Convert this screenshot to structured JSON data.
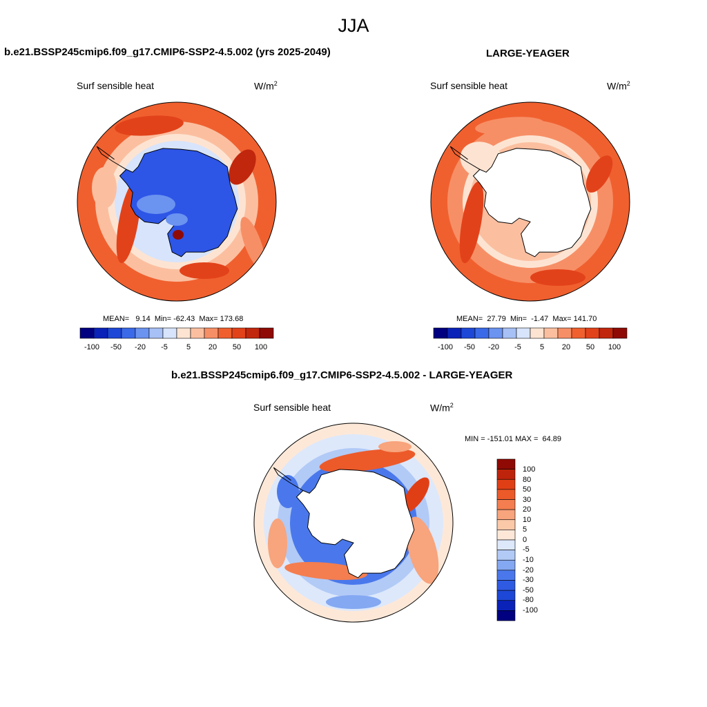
{
  "figure": {
    "title": "JJA",
    "panels": [
      {
        "id": "model",
        "title": "b.e21.BSSP245cmip6.f09_g17.CMIP6-SSP2-4.5.002 (yrs 2025-2049)",
        "variable": "Surf sensible heat",
        "units": "W/m",
        "units_sup": "2",
        "stats": "MEAN=   9.14  Min= -62.43  Max= 173.68",
        "colorbar_ticks": [
          "-100",
          "-50",
          "-20",
          "-5",
          "5",
          "20",
          "50",
          "100"
        ]
      },
      {
        "id": "obs",
        "title": "LARGE-YEAGER",
        "variable": "Surf sensible heat",
        "units": "W/m",
        "units_sup": "2",
        "stats": "MEAN=  27.79  Min=  -1.47  Max= 141.70",
        "colorbar_ticks": [
          "-100",
          "-50",
          "-20",
          "-5",
          "5",
          "20",
          "50",
          "100"
        ]
      },
      {
        "id": "diff",
        "title": "b.e21.BSSP245cmip6.f09_g17.CMIP6-SSP2-4.5.002 - LARGE-YEAGER",
        "variable": "Surf sensible heat",
        "units": "W/m",
        "units_sup": "2",
        "stats": "MIN = -151.01 MAX =  64.89",
        "colorbar_labels": [
          "100",
          "80",
          "50",
          "30",
          "20",
          "10",
          "5",
          "0",
          "-5",
          "-10",
          "-20",
          "-30",
          "-50",
          "-80",
          "-100"
        ]
      }
    ]
  },
  "colors": {
    "abs_scale": [
      "#000080",
      "#0a22b8",
      "#1d47d6",
      "#3b6ae8",
      "#6b93f0",
      "#a7c0f5",
      "#d7e4fb",
      "#fde4d2",
      "#fbbfa0",
      "#f78f66",
      "#f0602f",
      "#e2421a",
      "#c1270d",
      "#8f0a04"
    ],
    "diff_scale": [
      "#000080",
      "#0a22b8",
      "#1d47d6",
      "#2f5ae2",
      "#4a78ec",
      "#84a8f2",
      "#b2caf6",
      "#dde8fb",
      "#fde8d8",
      "#fbc8a8",
      "#f8a47c",
      "#f47e4f",
      "#ec5a2a",
      "#e03f16",
      "#be240b",
      "#8f0a04"
    ],
    "land_model": "#2d55e6",
    "land_other": "#ffffff",
    "coast": "#000000"
  },
  "chart_data": {
    "type": "heatmap",
    "projection": "south polar stereographic",
    "season": "JJA",
    "variable": "Surf sensible heat",
    "units": "W/m2",
    "panels": [
      {
        "name": "b.e21.BSSP245cmip6.f09_g17.CMIP6-SSP2-4.5.002 (yrs 2025-2049)",
        "mean": 9.14,
        "min": -62.43,
        "max": 173.68,
        "levels": [
          -100,
          -80,
          -50,
          -30,
          -20,
          -10,
          -5,
          0,
          5,
          10,
          20,
          30,
          50,
          80,
          100
        ]
      },
      {
        "name": "LARGE-YEAGER",
        "mean": 27.79,
        "min": -1.47,
        "max": 141.7,
        "levels": [
          -100,
          -80,
          -50,
          -30,
          -20,
          -10,
          -5,
          0,
          5,
          10,
          20,
          30,
          50,
          80,
          100
        ]
      },
      {
        "name": "b.e21.BSSP245cmip6.f09_g17.CMIP6-SSP2-4.5.002 - LARGE-YEAGER",
        "min": -151.01,
        "max": 64.89,
        "levels": [
          -100,
          -80,
          -50,
          -30,
          -20,
          -10,
          -5,
          0,
          5,
          10,
          20,
          30,
          50,
          80,
          100
        ]
      }
    ]
  }
}
